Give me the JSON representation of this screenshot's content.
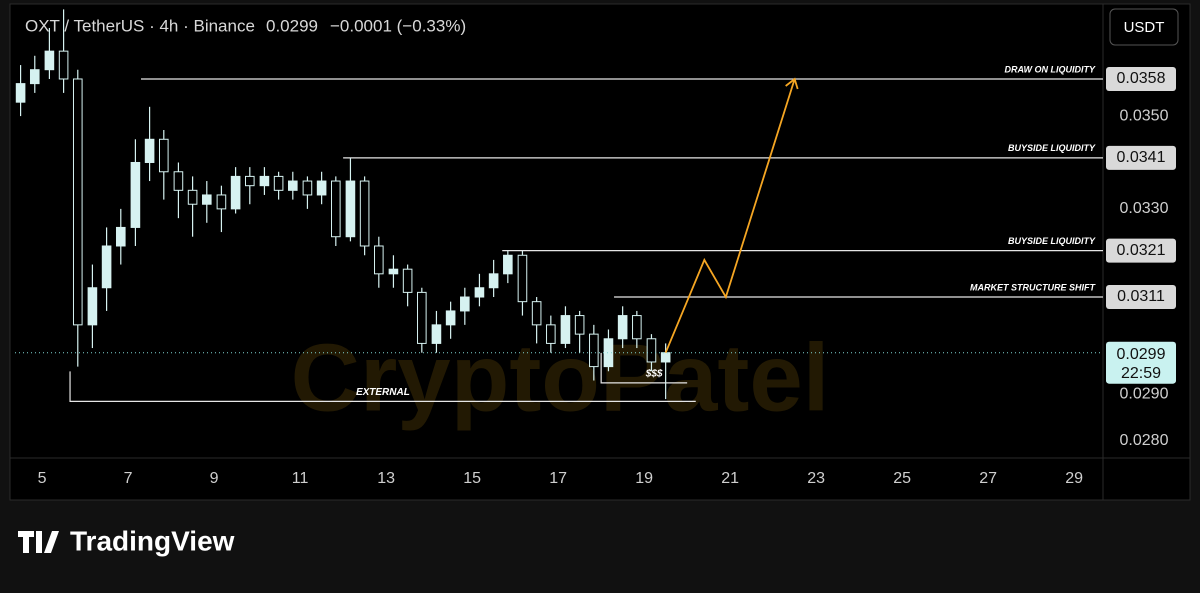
{
  "chart_data": {
    "type": "candlestick",
    "header": {
      "symbol": "OXT / TetherUS · 4h · Binance",
      "last": "0.0299",
      "change": "−0.0001 (−0.33%)"
    },
    "currency": "USDT",
    "watermark": "CryptoPatel",
    "xlim": [
      4.37,
      29.67
    ],
    "xticks": [
      5,
      7,
      9,
      11,
      13,
      15,
      17,
      19,
      21,
      23,
      25,
      27,
      29
    ],
    "ylim": [
      0.02763,
      0.03733
    ],
    "yticks": [
      {
        "value": 0.028,
        "label": "0.0280"
      },
      {
        "value": 0.029,
        "label": "0.0290"
      },
      {
        "value": 0.033,
        "label": "0.0330"
      },
      {
        "value": 0.035,
        "label": "0.0350"
      }
    ],
    "candle_color": "#d6f2f1",
    "x": [
      4.5,
      4.83,
      5.17,
      5.5,
      5.83,
      6.17,
      6.5,
      6.83,
      7.17,
      7.5,
      7.83,
      8.17,
      8.5,
      8.83,
      9.17,
      9.5,
      9.83,
      10.17,
      10.5,
      10.83,
      11.17,
      11.5,
      11.83,
      12.17,
      12.5,
      12.83,
      13.17,
      13.5,
      13.83,
      14.17,
      14.5,
      14.83,
      15.17,
      15.5,
      15.83,
      16.17,
      16.5,
      16.83,
      17.17,
      17.5,
      17.83,
      18.17,
      18.5,
      18.83,
      19.17,
      19.5
    ],
    "open": [
      0.0353,
      0.0357,
      0.036,
      0.0364,
      0.0358,
      0.0305,
      0.0313,
      0.0322,
      0.0326,
      0.034,
      0.0345,
      0.0338,
      0.0334,
      0.0331,
      0.0333,
      0.033,
      0.0337,
      0.0335,
      0.0337,
      0.0334,
      0.0336,
      0.0333,
      0.0336,
      0.0324,
      0.0336,
      0.0322,
      0.0316,
      0.0317,
      0.0312,
      0.0301,
      0.0305,
      0.0308,
      0.0311,
      0.0313,
      0.0316,
      0.032,
      0.031,
      0.0305,
      0.0301,
      0.0307,
      0.0303,
      0.0296,
      0.0302,
      0.0307,
      0.0302,
      0.0297
    ],
    "high": [
      0.0361,
      0.0363,
      0.0369,
      0.0373,
      0.036,
      0.0318,
      0.0326,
      0.033,
      0.0345,
      0.0352,
      0.0347,
      0.034,
      0.0337,
      0.0336,
      0.0335,
      0.0339,
      0.0339,
      0.0339,
      0.0338,
      0.0338,
      0.0337,
      0.0338,
      0.0337,
      0.0341,
      0.0337,
      0.0324,
      0.032,
      0.0318,
      0.0313,
      0.0308,
      0.031,
      0.0313,
      0.0316,
      0.0319,
      0.0321,
      0.0321,
      0.0311,
      0.0307,
      0.0309,
      0.0308,
      0.0305,
      0.0304,
      0.0309,
      0.0308,
      0.0303,
      0.0301
    ],
    "low": [
      0.035,
      0.0355,
      0.0358,
      0.0355,
      0.0296,
      0.03,
      0.0308,
      0.0318,
      0.0322,
      0.0336,
      0.0332,
      0.0328,
      0.0324,
      0.0327,
      0.0325,
      0.0329,
      0.0331,
      0.0333,
      0.0332,
      0.0332,
      0.033,
      0.0331,
      0.0322,
      0.0323,
      0.032,
      0.0313,
      0.0313,
      0.0309,
      0.0299,
      0.0299,
      0.0302,
      0.0305,
      0.0309,
      0.0311,
      0.0314,
      0.0307,
      0.0301,
      0.0299,
      0.03,
      0.0299,
      0.0293,
      0.0295,
      0.03,
      0.03,
      0.0295,
      0.0289
    ],
    "close": [
      0.0357,
      0.036,
      0.0364,
      0.0358,
      0.0305,
      0.0313,
      0.0322,
      0.0326,
      0.034,
      0.0345,
      0.0338,
      0.0334,
      0.0331,
      0.0333,
      0.033,
      0.0337,
      0.0335,
      0.0337,
      0.0334,
      0.0336,
      0.0333,
      0.0336,
      0.0324,
      0.0336,
      0.0322,
      0.0316,
      0.0317,
      0.0312,
      0.0301,
      0.0305,
      0.0308,
      0.0311,
      0.0313,
      0.0316,
      0.032,
      0.031,
      0.0305,
      0.0301,
      0.0307,
      0.0303,
      0.0296,
      0.0302,
      0.0307,
      0.0302,
      0.0297,
      0.0299
    ],
    "levels": [
      {
        "value": 0.0358,
        "label": "0.0358",
        "text": "DRAW ON LIQUIDITY",
        "from": 7.3
      },
      {
        "value": 0.0341,
        "label": "0.0341",
        "text": "BUYSIDE LIQUIDITY",
        "from": 12.0
      },
      {
        "value": 0.0321,
        "label": "0.0321",
        "text": "BUYSIDE LIQUIDITY",
        "from": 15.7
      },
      {
        "value": 0.0311,
        "label": "0.0311",
        "text": "MARKET STRUCTURE SHIFT",
        "from": 18.3
      }
    ],
    "lows": [
      {
        "value": 0.02885,
        "from": 5.65,
        "to": 20.2,
        "text": "EXTERNAL"
      },
      {
        "value": 0.02925,
        "from": 18.0,
        "to": 20.0,
        "text": "$$$"
      }
    ],
    "price_line": {
      "value": 0.0299,
      "label": "0.0299",
      "countdown": "22:59"
    },
    "projection": {
      "color": "#f5a623",
      "x": [
        19.5,
        20.4,
        20.9,
        22.5
      ],
      "y": [
        0.0299,
        0.0319,
        0.0311,
        0.0358
      ]
    },
    "brand": "TradingView"
  }
}
